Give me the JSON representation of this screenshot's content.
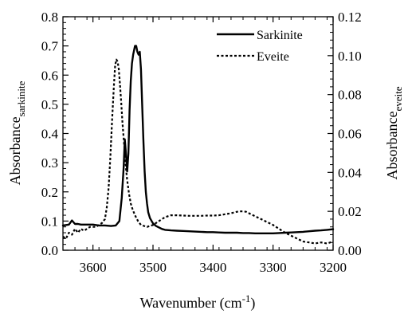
{
  "chart_data": {
    "type": "line",
    "x_axis": {
      "label": "Wavenumber (cm",
      "label_superscript": "-1",
      "label_close": ")",
      "range": [
        3650,
        3200
      ],
      "reversed": true,
      "ticks": [
        3600,
        3500,
        3400,
        3300,
        3200
      ],
      "tick_labels": [
        "3600",
        "3500",
        "3400",
        "3300",
        "3200"
      ]
    },
    "y_axis_left": {
      "label": "Absorbance",
      "label_subscript": "sarkinite",
      "range": [
        0,
        0.8
      ],
      "ticks": [
        0,
        0.1,
        0.2,
        0.3,
        0.4,
        0.5,
        0.6,
        0.7,
        0.8
      ],
      "tick_labels": [
        "0.0",
        "0.1",
        "0.2",
        "0.3",
        "0.4",
        "0.5",
        "0.6",
        "0.7",
        "0.8"
      ]
    },
    "y_axis_right": {
      "label": "Absorbance",
      "label_subscript": "eveite",
      "range": [
        0,
        0.12
      ],
      "ticks": [
        0,
        0.02,
        0.04,
        0.06,
        0.08,
        0.1,
        0.12
      ],
      "tick_labels": [
        "0.00",
        "0.02",
        "0.04",
        "0.06",
        "0.08",
        "0.10",
        "0.12"
      ]
    },
    "legend": {
      "position": "top-right",
      "entries": [
        {
          "label": "Sarkinite",
          "style": "solid"
        },
        {
          "label": "Eveite",
          "style": "dotted"
        }
      ]
    },
    "series": [
      {
        "name": "Sarkinite",
        "axis": "left",
        "style": "solid",
        "color": "#000000",
        "x": [
          3650,
          3640,
          3635,
          3630,
          3625,
          3620,
          3610,
          3600,
          3590,
          3580,
          3570,
          3562,
          3556,
          3552,
          3549,
          3547,
          3545,
          3543,
          3541,
          3539,
          3537,
          3535,
          3533,
          3530,
          3528,
          3526,
          3524,
          3522,
          3520,
          3518,
          3516,
          3514,
          3512,
          3510,
          3508,
          3505,
          3500,
          3495,
          3490,
          3485,
          3480,
          3470,
          3460,
          3450,
          3440,
          3430,
          3420,
          3410,
          3400,
          3390,
          3380,
          3370,
          3360,
          3350,
          3340,
          3330,
          3320,
          3310,
          3300,
          3290,
          3280,
          3270,
          3260,
          3250,
          3240,
          3230,
          3220,
          3210,
          3200
        ],
        "y": [
          0.085,
          0.088,
          0.102,
          0.09,
          0.09,
          0.088,
          0.088,
          0.088,
          0.085,
          0.085,
          0.083,
          0.085,
          0.1,
          0.18,
          0.28,
          0.38,
          0.33,
          0.27,
          0.33,
          0.48,
          0.58,
          0.64,
          0.67,
          0.7,
          0.7,
          0.68,
          0.67,
          0.68,
          0.62,
          0.5,
          0.38,
          0.27,
          0.2,
          0.16,
          0.13,
          0.11,
          0.092,
          0.083,
          0.078,
          0.073,
          0.07,
          0.068,
          0.067,
          0.066,
          0.065,
          0.064,
          0.063,
          0.062,
          0.062,
          0.061,
          0.06,
          0.06,
          0.06,
          0.059,
          0.059,
          0.058,
          0.058,
          0.058,
          0.058,
          0.059,
          0.06,
          0.061,
          0.062,
          0.063,
          0.065,
          0.067,
          0.068,
          0.07,
          0.072
        ]
      },
      {
        "name": "Eveite",
        "axis": "right",
        "style": "dotted",
        "color": "#000000",
        "x": [
          3650,
          3645,
          3640,
          3635,
          3630,
          3625,
          3620,
          3615,
          3610,
          3605,
          3600,
          3595,
          3590,
          3585,
          3580,
          3577,
          3574,
          3571,
          3568,
          3565,
          3563,
          3561,
          3559,
          3557,
          3555,
          3553,
          3551,
          3549,
          3547,
          3545,
          3543,
          3540,
          3537,
          3534,
          3530,
          3525,
          3520,
          3515,
          3510,
          3505,
          3500,
          3495,
          3490,
          3485,
          3480,
          3475,
          3470,
          3465,
          3460,
          3450,
          3440,
          3430,
          3420,
          3410,
          3400,
          3390,
          3380,
          3370,
          3360,
          3355,
          3350,
          3345,
          3340,
          3330,
          3320,
          3310,
          3300,
          3290,
          3280,
          3270,
          3260,
          3250,
          3240,
          3230,
          3220,
          3210,
          3200
        ],
        "y": [
          0.007,
          0.006,
          0.009,
          0.008,
          0.011,
          0.009,
          0.011,
          0.01,
          0.011,
          0.012,
          0.012,
          0.012,
          0.013,
          0.014,
          0.016,
          0.022,
          0.032,
          0.048,
          0.068,
          0.085,
          0.095,
          0.098,
          0.097,
          0.093,
          0.085,
          0.076,
          0.066,
          0.058,
          0.05,
          0.042,
          0.036,
          0.029,
          0.024,
          0.021,
          0.018,
          0.015,
          0.013,
          0.0125,
          0.012,
          0.0125,
          0.013,
          0.014,
          0.015,
          0.016,
          0.017,
          0.0175,
          0.018,
          0.018,
          0.018,
          0.0178,
          0.0177,
          0.0177,
          0.0177,
          0.0178,
          0.0178,
          0.018,
          0.0185,
          0.019,
          0.0198,
          0.02,
          0.02,
          0.0198,
          0.019,
          0.0175,
          0.016,
          0.0145,
          0.013,
          0.011,
          0.009,
          0.0075,
          0.006,
          0.0045,
          0.004,
          0.0035,
          0.004,
          0.0035,
          0.0045
        ]
      }
    ]
  }
}
